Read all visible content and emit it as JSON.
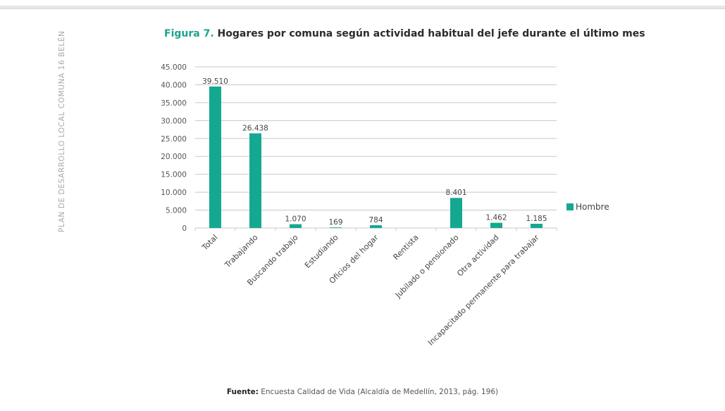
{
  "page": {
    "side_text": "PLAN DE DESARROLLO LOCAL COMUNA 16 BELÉN",
    "figure_label": "Figura 7.",
    "figure_title": "Hogares por comuna según actividad habitual del jefe durante el último mes",
    "source_label": "Fuente:",
    "source_text": "Encuesta Calidad de Vida (Alcaldía de Medellín, 2013, pág. 196)"
  },
  "colors": {
    "bar": "#15a891",
    "grid": "#c8c8c8",
    "figure_label": "#1aa38e"
  },
  "chart_data": {
    "type": "bar",
    "categories": [
      "Total",
      "Trabajando",
      "Buscando trabajo",
      "Estudiando",
      "Oficios del hogar",
      "Rentista",
      "Jubilado o pensionado",
      "Otra actividad",
      "Incapacitado permanente para trabajar"
    ],
    "series": [
      {
        "name": "Hombre",
        "values": [
          39510,
          26438,
          1070,
          169,
          784,
          0,
          8401,
          1462,
          1185
        ]
      }
    ],
    "data_labels": [
      "39.510",
      "26.438",
      "1.070",
      "169",
      "784",
      "",
      "8.401",
      "1.462",
      "1.185"
    ],
    "y_ticks": [
      0,
      5000,
      10000,
      15000,
      20000,
      25000,
      30000,
      35000,
      40000,
      45000
    ],
    "y_tick_labels": [
      "0",
      "5.000",
      "10.000",
      "15.000",
      "20.000",
      "25.000",
      "30.000",
      "35.000",
      "40.000",
      "45.000"
    ],
    "ylim": [
      0,
      45000
    ],
    "grid": true,
    "legend": "right"
  }
}
